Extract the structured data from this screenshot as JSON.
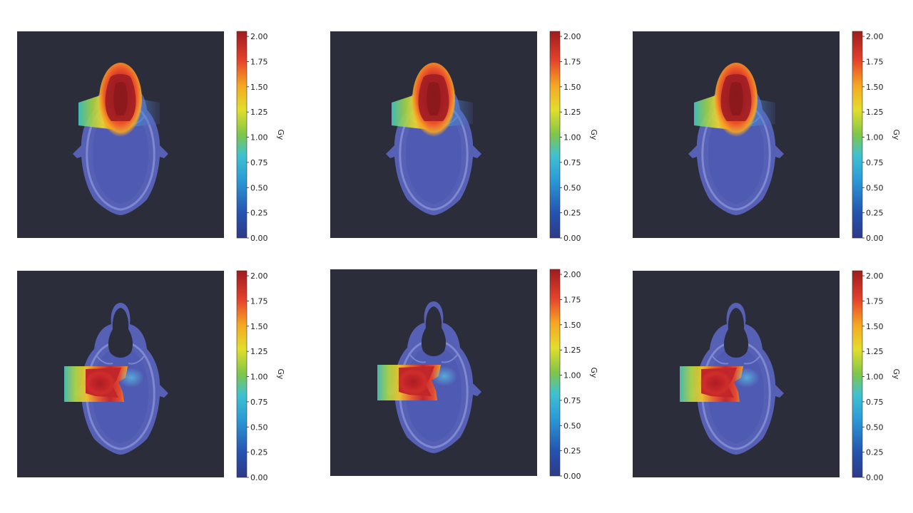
{
  "chart_data": {
    "type": "heatmap",
    "colormap": "jet",
    "background_color": "#2b2d3b",
    "panels": [
      {
        "id": "r1c1",
        "row": 1,
        "col": 1,
        "target": "anterior",
        "colorbar": {
          "label": "Gy",
          "vmin": 0.0,
          "vmax": 2.05,
          "ticks": [
            "0.00",
            "0.25",
            "0.50",
            "0.75",
            "1.00",
            "1.25",
            "1.50",
            "1.75",
            "2.00"
          ]
        }
      },
      {
        "id": "r1c2",
        "row": 1,
        "col": 2,
        "target": "anterior",
        "colorbar": {
          "label": "Gy",
          "vmin": 0.0,
          "vmax": 2.05,
          "ticks": [
            "0.00",
            "0.25",
            "0.50",
            "0.75",
            "1.00",
            "1.25",
            "1.50",
            "1.75",
            "2.00"
          ]
        }
      },
      {
        "id": "r1c3",
        "row": 1,
        "col": 3,
        "target": "anterior",
        "colorbar": {
          "label": "Gy",
          "vmin": 0.0,
          "vmax": 2.05,
          "ticks": [
            "0.00",
            "0.25",
            "0.50",
            "0.75",
            "1.00",
            "1.25",
            "1.50",
            "1.75",
            "2.00"
          ]
        }
      },
      {
        "id": "r2c1",
        "row": 2,
        "col": 1,
        "target": "lateral",
        "colorbar": {
          "label": "Gy",
          "vmin": 0.0,
          "vmax": 2.05,
          "ticks": [
            "0.00",
            "0.25",
            "0.50",
            "0.75",
            "1.00",
            "1.25",
            "1.50",
            "1.75",
            "2.00"
          ]
        }
      },
      {
        "id": "r2c2",
        "row": 2,
        "col": 2,
        "target": "lateral",
        "colorbar": {
          "label": "Gy",
          "vmin": 0.0,
          "vmax": 2.05,
          "ticks": [
            "0.00",
            "0.25",
            "0.50",
            "0.75",
            "1.00",
            "1.25",
            "1.50",
            "1.75",
            "2.00"
          ]
        }
      },
      {
        "id": "r2c3",
        "row": 2,
        "col": 3,
        "target": "lateral",
        "colorbar": {
          "label": "Gy",
          "vmin": 0.0,
          "vmax": 2.05,
          "ticks": [
            "0.00",
            "0.25",
            "0.50",
            "0.75",
            "1.00",
            "1.25",
            "1.50",
            "1.75",
            "2.00"
          ]
        }
      }
    ]
  }
}
